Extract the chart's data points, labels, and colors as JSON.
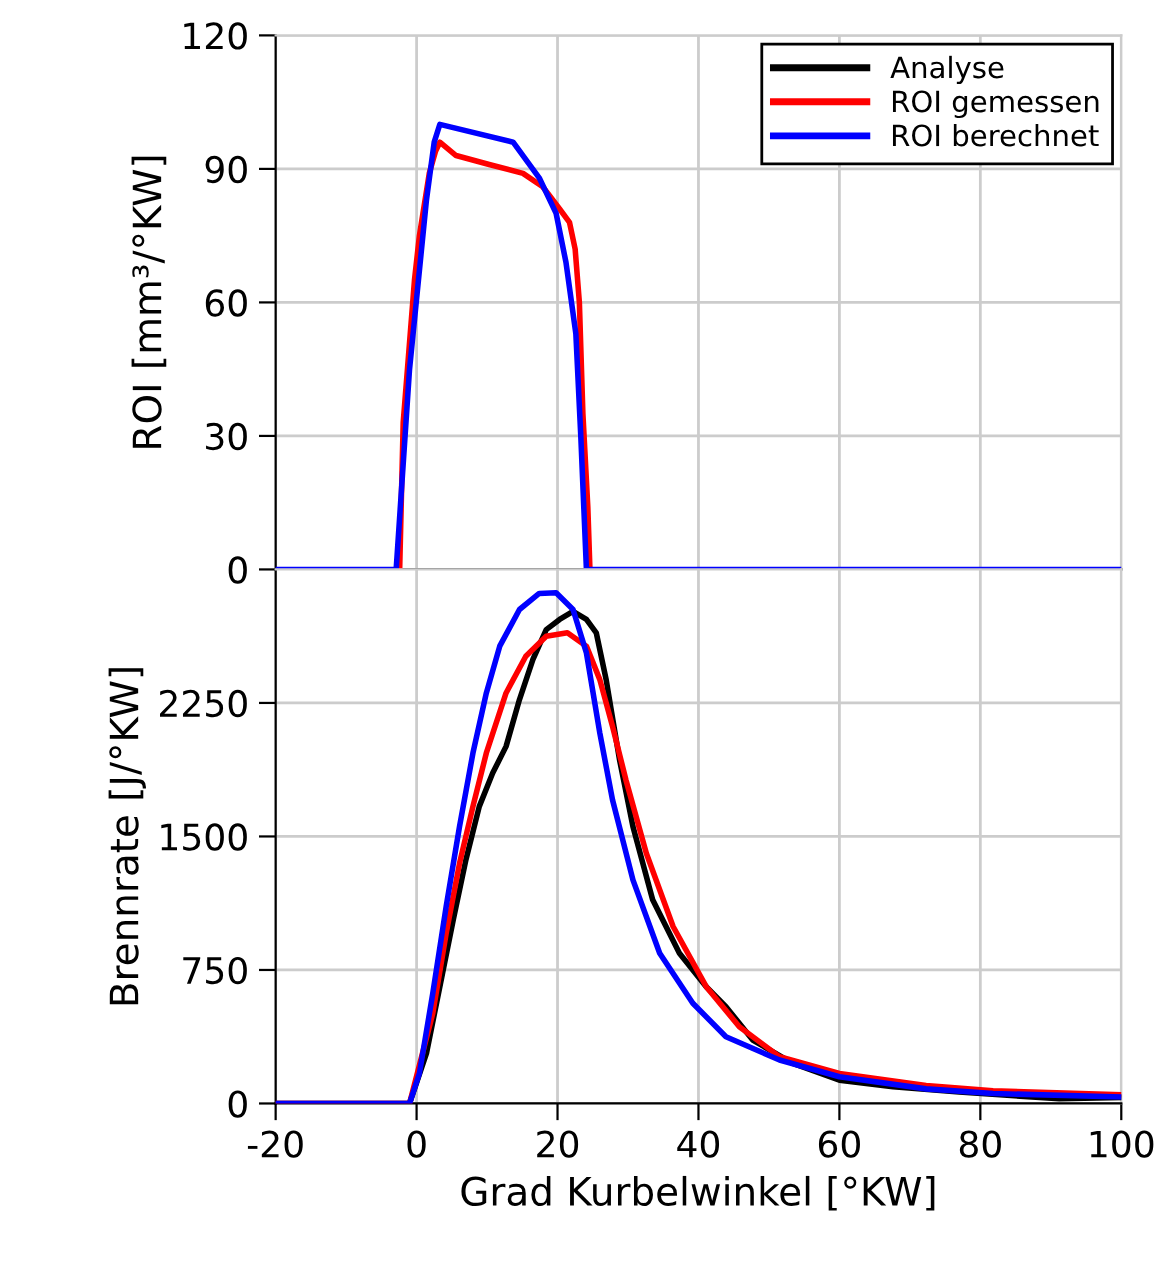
{
  "chart_data": [
    {
      "type": "line",
      "ylabel": "ROI [mm³/°KW]",
      "xlim": [
        -20,
        100
      ],
      "xticks": [
        -20,
        0,
        20,
        40,
        60,
        80,
        100
      ],
      "ylim": [
        0,
        120
      ],
      "yticks": [
        0,
        30,
        60,
        90,
        120
      ],
      "grid": true,
      "tick_labels": "y",
      "line_style": "solid",
      "series": [
        {
          "color": "#ff0000",
          "x": [
            -2.4,
            -1.9,
            -1.3,
            -0.3,
            0.4,
            1.8,
            2.7,
            3.3,
            5.6,
            10.3,
            15.1,
            17.9,
            20.3,
            21.7,
            22.5,
            23.1,
            23.6,
            24.3,
            24.6
          ],
          "values": [
            0,
            33,
            45,
            65,
            75,
            89,
            94,
            96,
            93,
            91,
            89,
            86,
            81,
            78,
            72,
            60,
            35,
            14,
            0
          ]
        },
        {
          "color": "#0000ff",
          "x": [
            -20,
            -2.9,
            -1.0,
            1.4,
            2.5,
            3.3,
            13.7,
            17.4,
            19.8,
            21.2,
            22.6,
            23.3,
            24.1,
            100
          ],
          "values": [
            0,
            0,
            45,
            83,
            96,
            100,
            96,
            88,
            80,
            69,
            53,
            30,
            0,
            0
          ]
        }
      ]
    },
    {
      "type": "line",
      "xlabel": "Grad Kurbelwinkel [°KW]",
      "ylabel": "Brennrate [J/°KW]",
      "xlim": [
        -20,
        100
      ],
      "xticks": [
        -20,
        0,
        20,
        40,
        60,
        80,
        100
      ],
      "ylim": [
        0,
        3000
      ],
      "yticks": [
        0,
        750,
        1500,
        2250
      ],
      "grid": true,
      "legend": "top right",
      "line_style": "solid",
      "series": [
        {
          "name": "Analyse",
          "color": "#000000",
          "x": [
            -20,
            -1.0,
            1.4,
            3.3,
            5.2,
            7.0,
            8.9,
            10.8,
            12.7,
            14.6,
            16.5,
            18.4,
            20.3,
            22.2,
            24.1,
            25.5,
            26.9,
            28.8,
            30.7,
            33.5,
            37.3,
            41.1,
            43.9,
            47.7,
            53.4,
            60.0,
            67.6,
            77.0,
            91.2,
            99.7
          ],
          "values": [
            0,
            0,
            281,
            656,
            1031,
            1369,
            1669,
            1856,
            2006,
            2269,
            2494,
            2662,
            2719,
            2764,
            2719,
            2644,
            2381,
            1931,
            1556,
            1144,
            844,
            656,
            544,
            356,
            225,
            131,
            94,
            64,
            26,
            34
          ]
        },
        {
          "name": "ROI gemessen",
          "color": "#ff0000",
          "x": [
            -20,
            -1.0,
            2.3,
            4.2,
            6.1,
            8.0,
            9.9,
            12.7,
            15.5,
            18.4,
            21.4,
            24.1,
            26.0,
            27.8,
            29.7,
            32.6,
            36.4,
            41.1,
            45.8,
            51.5,
            60.0,
            72.3,
            81.8,
            99.7
          ],
          "values": [
            0,
            0,
            506,
            956,
            1350,
            1669,
            1969,
            2306,
            2512,
            2625,
            2644,
            2569,
            2381,
            2119,
            1819,
            1406,
            994,
            656,
            431,
            263,
            169,
            101,
            71,
            49
          ]
        },
        {
          "name": "ROI berechnet",
          "color": "#0000ff",
          "x": [
            -20,
            -1.0,
            0.4,
            2.3,
            4.2,
            6.1,
            8.0,
            9.9,
            11.8,
            14.6,
            17.4,
            19.8,
            22.2,
            24.1,
            26.0,
            27.8,
            30.7,
            34.5,
            39.2,
            43.9,
            51.5,
            60.0,
            72.3,
            81.8,
            99.7
          ],
          "values": [
            0,
            0,
            169,
            619,
            1107,
            1557,
            1969,
            2306,
            2569,
            2775,
            2865,
            2869,
            2775,
            2531,
            2081,
            1706,
            1256,
            844,
            563,
            375,
            244,
            150,
            82,
            56,
            37
          ]
        }
      ]
    }
  ]
}
